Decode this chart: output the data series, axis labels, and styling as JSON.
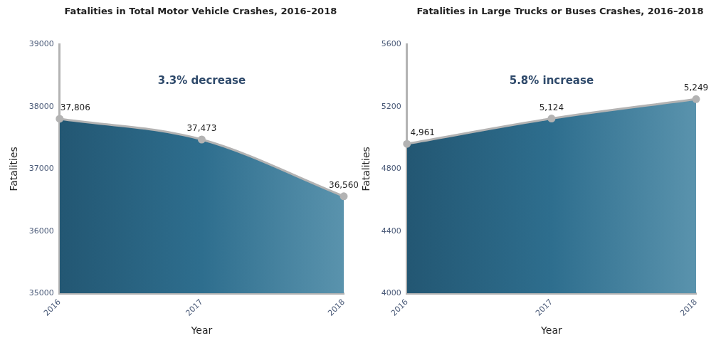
{
  "chart_data": [
    {
      "type": "area",
      "title": "Fatalities in Total Motor Vehicle Crashes, 2016–2018",
      "xlabel": "Year",
      "ylabel": "Fatalities",
      "categories": [
        "2016",
        "2017",
        "2018"
      ],
      "series": [
        {
          "color": "#2e6e8e",
          "values": [
            37806,
            37473,
            36560
          ],
          "value_labels": [
            "37,806",
            "37,473",
            "36,560"
          ]
        }
      ],
      "ylim": [
        35000,
        39000
      ],
      "yticks": [
        35000,
        36000,
        37000,
        38000,
        39000
      ],
      "grid": false,
      "legend": false,
      "marker": "circle",
      "annotations": [
        "3.3% decrease"
      ]
    },
    {
      "type": "area",
      "title": "Fatalities in Large Trucks or Buses Crashes, 2016–2018",
      "xlabel": "Year",
      "ylabel": "Fatalities",
      "categories": [
        "2016",
        "2017",
        "2018"
      ],
      "series": [
        {
          "color": "#2e6e8e",
          "values": [
            4961,
            5124,
            5249
          ],
          "value_labels": [
            "4,961",
            "5,124",
            "5,249"
          ]
        }
      ],
      "ylim": [
        4000,
        5600
      ],
      "yticks": [
        4000,
        4400,
        4800,
        5200,
        5600
      ],
      "grid": false,
      "legend": false,
      "marker": "circle",
      "annotations": [
        "5.8% increase"
      ]
    }
  ]
}
